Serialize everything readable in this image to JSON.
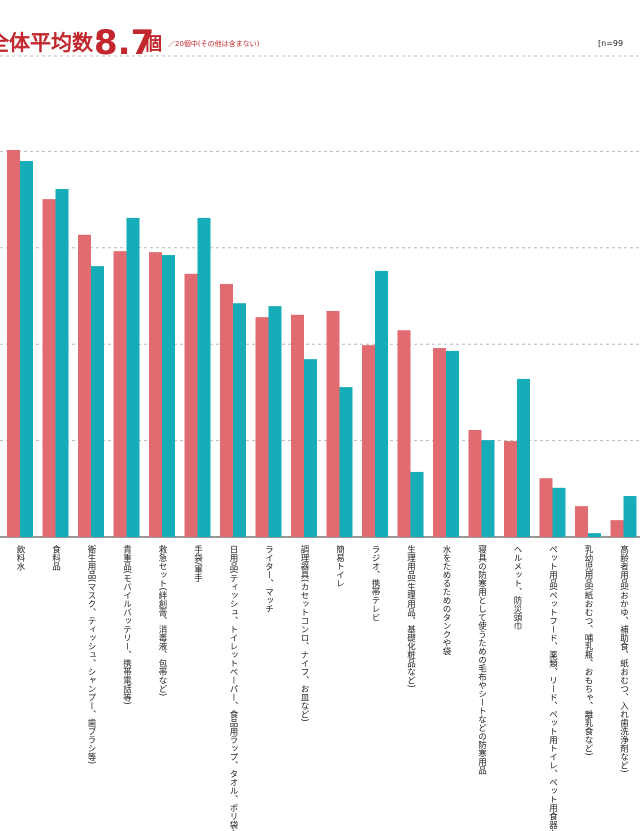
{
  "chart_data": {
    "type": "bar",
    "title": "全体平均数：",
    "title_value": 8.7,
    "title_unit": "個",
    "subtitle": "／20個中(その他は含まない)",
    "sample": "[n=99",
    "categories": [
      "飲料水",
      "食料品",
      "衛生用品(マスク、ティッシュ、シャンプー、歯ブラシ等)",
      "貴重品(モバイルバッテリー、携帯電話等)",
      "救急セット(絆創膏、消毒液、包帯など)",
      "手袋/軍手",
      "日用品(ティッシュ、トイレットペーパー、食品用ラップ、タオル、ポリ袋など)",
      "ライター、マッチ",
      "調理器具(カセットコンロ、ナイフ、お皿など)",
      "簡易トイレ",
      "ラジオ、携帯テレビ",
      "生理用品(生理用品、基礎化粧品など)",
      "水をためるためのタンクや袋",
      "寝具の防寒用として使うための毛布やシートなどの防寒用品",
      "ヘルメット、防災頭巾",
      "ペット用品(ペットフード、薬類、リード、ペット用トイレ、ペット用食器など)",
      "乳幼児用品(紙おむつ、哺乳瓶、おもちゃ、離乳食など)",
      "高齢者用品(おかゆ、補助食、紙おむつ、入れ歯洗浄剤など)"
    ],
    "series": [
      {
        "color": "#e06c72",
        "values": [
          80.3,
          70.1,
          62.7,
          59.3,
          59.1,
          54.6,
          52.5,
          45.6,
          46.1,
          46.9,
          39.8,
          42.9,
          39.2,
          22.2,
          19.9,
          12.2,
          6.4,
          3.5
        ]
      },
      {
        "color": "#17adb8",
        "values": [
          78.0,
          72.2,
          56.2,
          66.2,
          58.5,
          66.2,
          48.5,
          47.9,
          36.9,
          31.1,
          55.2,
          13.5,
          38.6,
          20.1,
          32.8,
          10.2,
          0.8,
          8.5
        ]
      }
    ],
    "ylim": [
      0,
      100
    ],
    "yticks": [
      20,
      40,
      60,
      80
    ],
    "grid": true
  }
}
